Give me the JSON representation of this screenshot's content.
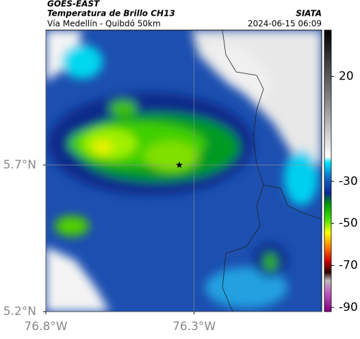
{
  "header": {
    "satellite": "GOES-EAST",
    "product": "Temperatura de Brillo CH13",
    "route": "Vía Medellín - Quibdó 50km",
    "source": "SIATA",
    "timestamp": "2024-06-15 06:09"
  },
  "map": {
    "xlim": [
      -76.8,
      -75.87
    ],
    "ylim": [
      5.2,
      6.16
    ],
    "xticks": [
      {
        "value": -76.8,
        "label": "76.8°W"
      },
      {
        "value": -76.3,
        "label": "76.3°W"
      }
    ],
    "yticks": [
      {
        "value": 5.2,
        "label": "5.2°N"
      },
      {
        "value": 5.7,
        "label": "5.7°N"
      }
    ],
    "grid": true,
    "marker": {
      "lon": -76.35,
      "lat": 5.7
    }
  },
  "colorbar": {
    "lim": [
      -92,
      42
    ],
    "ticks": [
      20,
      -30,
      -50,
      -70,
      -90
    ]
  }
}
